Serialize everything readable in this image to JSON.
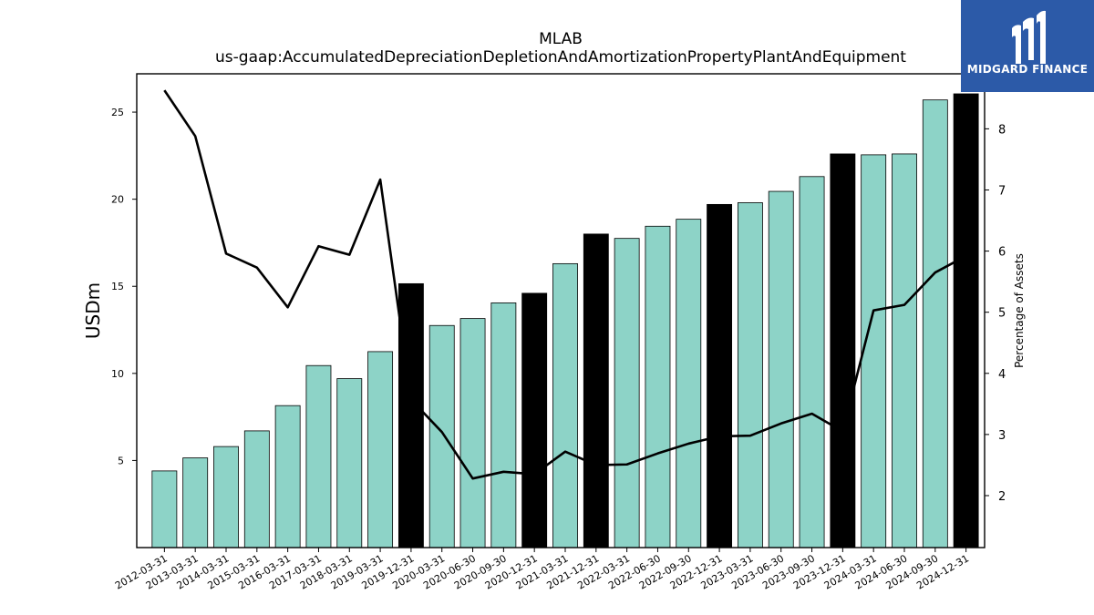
{
  "chart_data": {
    "type": "bar",
    "title": "MLAB",
    "subtitle": "us-gaap:AccumulatedDepreciationDepletionAndAmortizationPropertyPlantAndEquipment",
    "ylabel": "USDm",
    "y2label": "Percentage of Assets",
    "categories": [
      "2012-03-31",
      "2013-03-31",
      "2014-03-31",
      "2015-03-31",
      "2016-03-31",
      "2017-03-31",
      "2018-03-31",
      "2019-03-31",
      "2019-12-31",
      "2020-03-31",
      "2020-06-30",
      "2020-09-30",
      "2020-12-31",
      "2021-03-31",
      "2021-12-31",
      "2022-03-31",
      "2022-06-30",
      "2022-09-30",
      "2022-12-31",
      "2023-03-31",
      "2023-06-30",
      "2023-09-30",
      "2023-12-31",
      "2024-03-31",
      "2024-06-30",
      "2024-09-30",
      "2024-12-31"
    ],
    "series": [
      {
        "type": "bar",
        "axis": "left",
        "values": [
          4.4,
          5.15,
          5.8,
          6.7,
          8.15,
          10.45,
          9.7,
          11.25,
          15.15,
          12.75,
          13.15,
          14.05,
          14.6,
          16.3,
          18.0,
          17.75,
          18.45,
          18.85,
          19.7,
          19.8,
          20.45,
          21.3,
          22.6,
          22.55,
          22.6,
          25.7,
          26.05
        ],
        "highlight": [
          false,
          false,
          false,
          false,
          false,
          false,
          false,
          false,
          true,
          false,
          false,
          false,
          true,
          false,
          true,
          false,
          false,
          false,
          true,
          false,
          false,
          false,
          true,
          false,
          false,
          false,
          true
        ]
      },
      {
        "type": "line",
        "axis": "right",
        "values": [
          8.63,
          7.88,
          5.96,
          5.73,
          5.08,
          6.08,
          5.94,
          7.17,
          3.57,
          3.04,
          2.28,
          2.39,
          2.35,
          2.72,
          2.5,
          2.51,
          2.69,
          2.85,
          2.97,
          2.98,
          3.18,
          3.34,
          3.05,
          5.03,
          5.12,
          5.65,
          5.92
        ]
      }
    ],
    "ylim": [
      0,
      27.2
    ],
    "y2lim": [
      1.15,
      8.9
    ],
    "yticks": [
      5,
      10,
      15,
      20,
      25
    ],
    "y2ticks": [
      2,
      3,
      4,
      5,
      6,
      7,
      8
    ],
    "colors": {
      "bar": "#8dd3c7",
      "bar_highlight": "#000000",
      "line": "#000000"
    },
    "grid": false
  },
  "logo": {
    "text": "MIDGARD FINANCE"
  }
}
